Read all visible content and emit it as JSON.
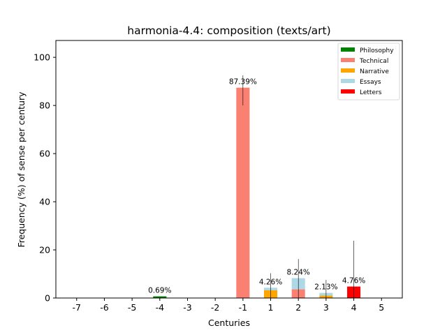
{
  "chart_data": {
    "type": "bar",
    "title": "harmonia-4.4: composition (texts/art)",
    "xlabel": "Centuries",
    "ylabel": "Frequency (%) of sense per century",
    "categories": [
      "-7",
      "-6",
      "-5",
      "-4",
      "-3",
      "-2",
      "-1",
      "1",
      "2",
      "3",
      "4",
      "5"
    ],
    "ylim": [
      0,
      107
    ],
    "yticks": [
      0,
      20,
      40,
      60,
      80,
      100
    ],
    "stacked": true,
    "legend_position": "top-right",
    "series": [
      {
        "name": "Philosophy",
        "color": "#008000",
        "values": [
          0,
          0,
          0,
          0.69,
          0,
          0,
          0,
          0,
          0,
          0,
          0,
          0
        ]
      },
      {
        "name": "Technical",
        "color": "#fa8072",
        "values": [
          0,
          0,
          0,
          0,
          0,
          0,
          87.39,
          0,
          3.6,
          0,
          0,
          0
        ]
      },
      {
        "name": "Narrative",
        "color": "#ffa500",
        "values": [
          0,
          0,
          0,
          0,
          0,
          0,
          0,
          3.2,
          0,
          1.0,
          0,
          0
        ]
      },
      {
        "name": "Essays",
        "color": "#add8e6",
        "values": [
          0,
          0,
          0,
          0,
          0,
          0,
          0,
          1.06,
          4.64,
          1.13,
          0,
          0
        ]
      },
      {
        "name": "Letters",
        "color": "#ff0000",
        "values": [
          0,
          0,
          0,
          0,
          0,
          0,
          0,
          0,
          0,
          0,
          4.76,
          0
        ]
      }
    ],
    "totals": [
      0,
      0,
      0,
      0.69,
      0,
      0,
      87.39,
      4.26,
      8.24,
      2.13,
      4.76,
      0
    ],
    "total_labels": [
      "",
      "",
      "",
      "0.69%",
      "",
      "",
      "87.39%",
      "4.26%",
      "8.24%",
      "2.13%",
      "4.76%",
      ""
    ],
    "error_bars": [
      {
        "category": "-1",
        "low": 80,
        "high": 92.5
      },
      {
        "category": "1",
        "low": 0,
        "high": 10.3
      },
      {
        "category": "2",
        "low": 0,
        "high": 16.2
      },
      {
        "category": "3",
        "low": 0,
        "high": 7.5
      },
      {
        "category": "4",
        "low": 0,
        "high": 23.8
      }
    ]
  }
}
